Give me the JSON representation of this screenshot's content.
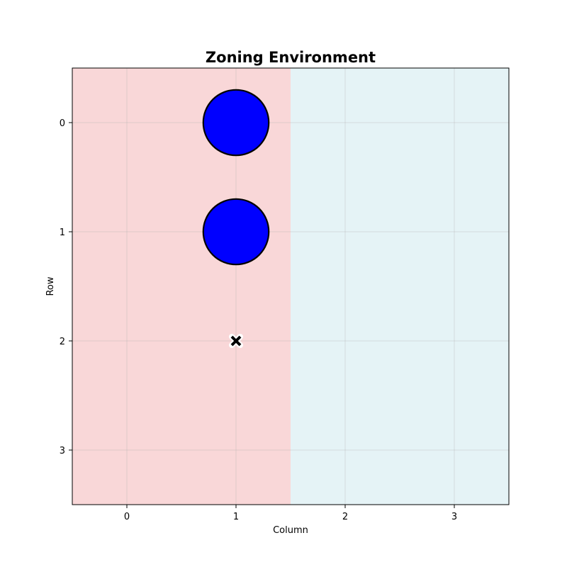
{
  "chart_data": {
    "type": "heatmap",
    "title": "Zoning Environment",
    "xlabel": "Column",
    "ylabel": "Row",
    "x_ticks": [
      "0",
      "1",
      "2",
      "3"
    ],
    "y_ticks": [
      "0",
      "1",
      "2",
      "3"
    ],
    "xlim": [
      -0.5,
      3.5
    ],
    "ylim": [
      3.5,
      -0.5
    ],
    "grid": true,
    "zones": [
      {
        "col_start": -0.5,
        "col_end": 1.5,
        "color": "#f9d7d8"
      },
      {
        "col_start": 1.5,
        "col_end": 3.5,
        "color": "#e5f3f6"
      }
    ],
    "agents": [
      {
        "row": 0,
        "col": 1,
        "color": "#0000ff"
      },
      {
        "row": 1,
        "col": 1,
        "color": "#0000ff"
      }
    ],
    "markers": [
      {
        "row": 2,
        "col": 1,
        "symbol": "x",
        "color": "#000000"
      }
    ]
  }
}
